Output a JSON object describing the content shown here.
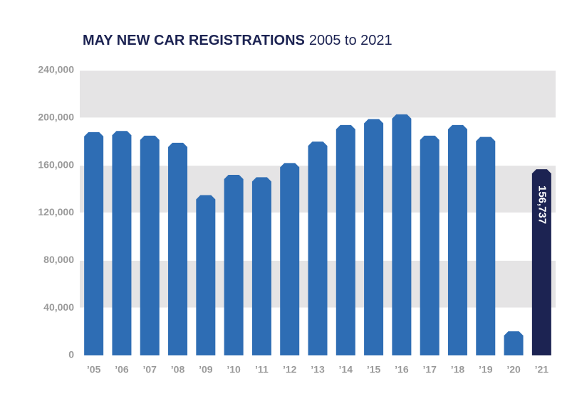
{
  "chart_data": {
    "type": "bar",
    "title": "MAY NEW CAR REGISTRATIONS",
    "subtitle": "2005 to 2021",
    "categories": [
      "’05",
      "’06",
      "’07",
      "’08",
      "’09",
      "’10",
      "’11",
      "’12",
      "’13",
      "’14",
      "’15",
      "’16",
      "’17",
      "’18",
      "’19",
      "’20",
      "’21"
    ],
    "values": [
      188000,
      189000,
      185000,
      179000,
      135000,
      152000,
      150000,
      162000,
      180000,
      194000,
      199000,
      203000,
      185000,
      194000,
      184000,
      20247,
      156737
    ],
    "value_labels": [
      null,
      null,
      null,
      null,
      null,
      null,
      null,
      null,
      null,
      null,
      null,
      null,
      null,
      null,
      null,
      null,
      "156,737"
    ],
    "colors": [
      "#2e6db4",
      "#2e6db4",
      "#2e6db4",
      "#2e6db4",
      "#2e6db4",
      "#2e6db4",
      "#2e6db4",
      "#2e6db4",
      "#2e6db4",
      "#2e6db4",
      "#2e6db4",
      "#2e6db4",
      "#2e6db4",
      "#2e6db4",
      "#2e6db4",
      "#2e6db4",
      "#1c2352"
    ],
    "ylim": [
      0,
      240000
    ],
    "yticks": [
      0,
      {
        "value": 40000,
        "label": "40,000"
      },
      {
        "value": 80000,
        "label": "80,000"
      },
      {
        "value": 120000,
        "label": "120,000"
      },
      {
        "value": 160000,
        "label": "160,000"
      },
      {
        "value": 200000,
        "label": "200,000"
      },
      {
        "value": 240000,
        "label": "240,000"
      }
    ],
    "grid": true
  }
}
